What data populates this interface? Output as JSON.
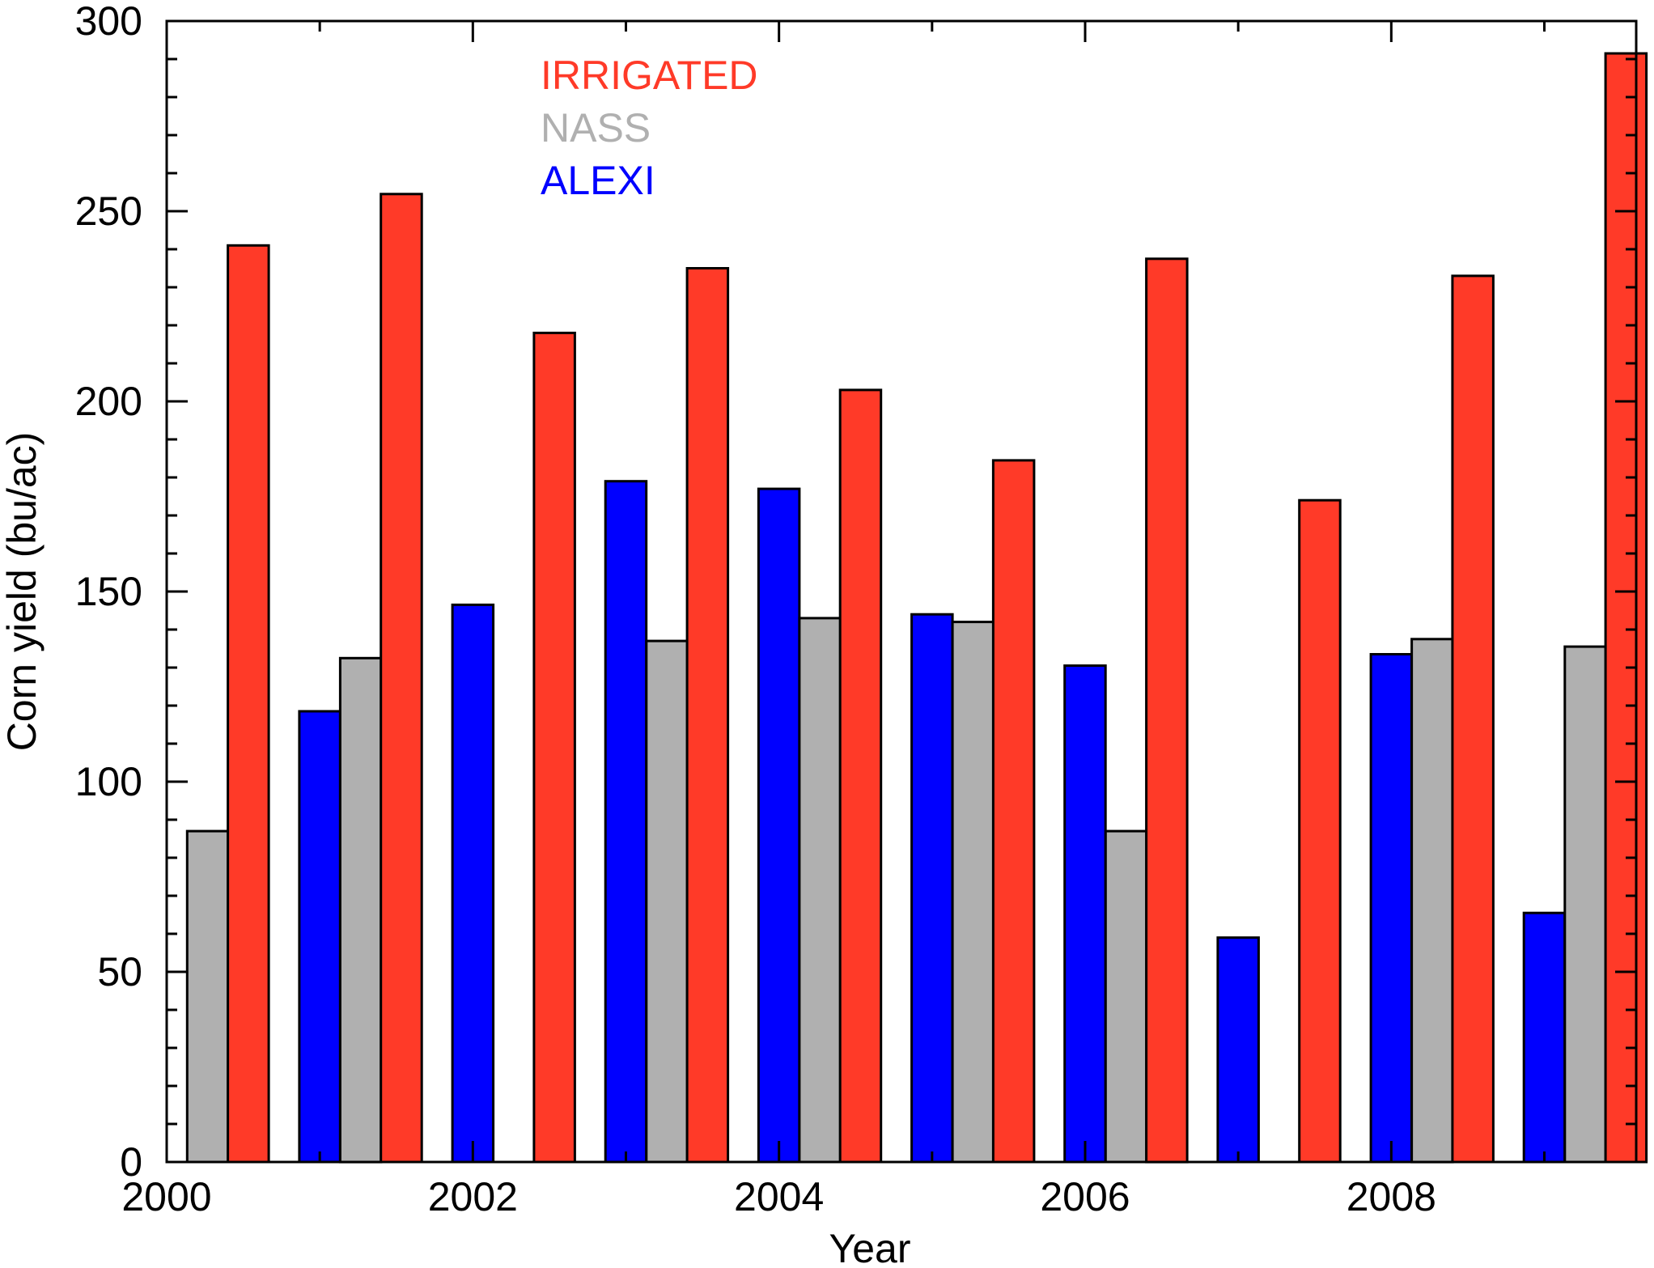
{
  "chart_data": {
    "type": "bar",
    "title": "",
    "xlabel": "Year",
    "ylabel": "Corn yield (bu/ac)",
    "xlim": [
      2000,
      2009.6
    ],
    "ylim": [
      0,
      300
    ],
    "x_ticks": [
      2000,
      2002,
      2004,
      2006,
      2008
    ],
    "y_ticks": [
      0,
      50,
      100,
      150,
      200,
      250,
      300
    ],
    "grid": false,
    "legend_position": "top-left",
    "categories": [
      "2000",
      "2001",
      "2002",
      "2003",
      "2004",
      "2005",
      "2006",
      "2007",
      "2008",
      "2009"
    ],
    "series": [
      {
        "name": "ALEXI",
        "color": "#0000ff",
        "values": [
          null,
          118.5,
          146.5,
          179,
          177,
          144,
          130.5,
          59,
          133.5,
          65.5
        ]
      },
      {
        "name": "NASS",
        "color": "#b0b0b0",
        "values": [
          87,
          132.5,
          null,
          137,
          143,
          142,
          87,
          null,
          137.5,
          135.5
        ]
      },
      {
        "name": "IRRIGATED",
        "color": "#ff3a28",
        "values": [
          241,
          254.5,
          218,
          235,
          203,
          184.5,
          237.5,
          174,
          233,
          291.5
        ]
      }
    ]
  }
}
